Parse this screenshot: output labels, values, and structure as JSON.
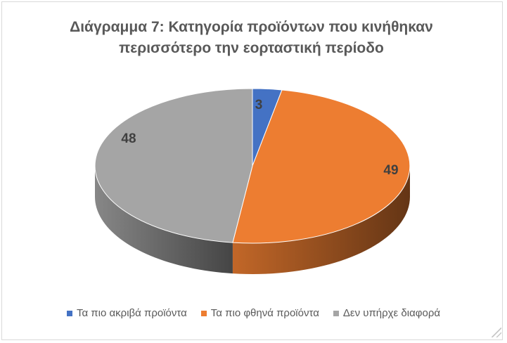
{
  "chart_data": {
    "type": "pie",
    "title": "Διάγραμμα 7: Κατηγορία προϊόντων που κινήθηκαν περισσότερο την εορταστική περίοδο",
    "title_lines": [
      "Διάγραμμα 7: Κατηγορία προϊόντων που κινήθηκαν",
      "περισσότερο την εορταστική περίοδο"
    ],
    "categories": [
      "Τα πιο ακριβά προϊόντα",
      "Τα πιο φθηνά προϊόντα",
      "Δεν υπήρχε διαφορά"
    ],
    "values": [
      3,
      49,
      48
    ],
    "data_labels": [
      "3",
      "49",
      "48"
    ],
    "colors": [
      "#4472c4",
      "#ed7d31",
      "#a5a5a5"
    ],
    "style": "3d",
    "legend_position": "bottom"
  }
}
